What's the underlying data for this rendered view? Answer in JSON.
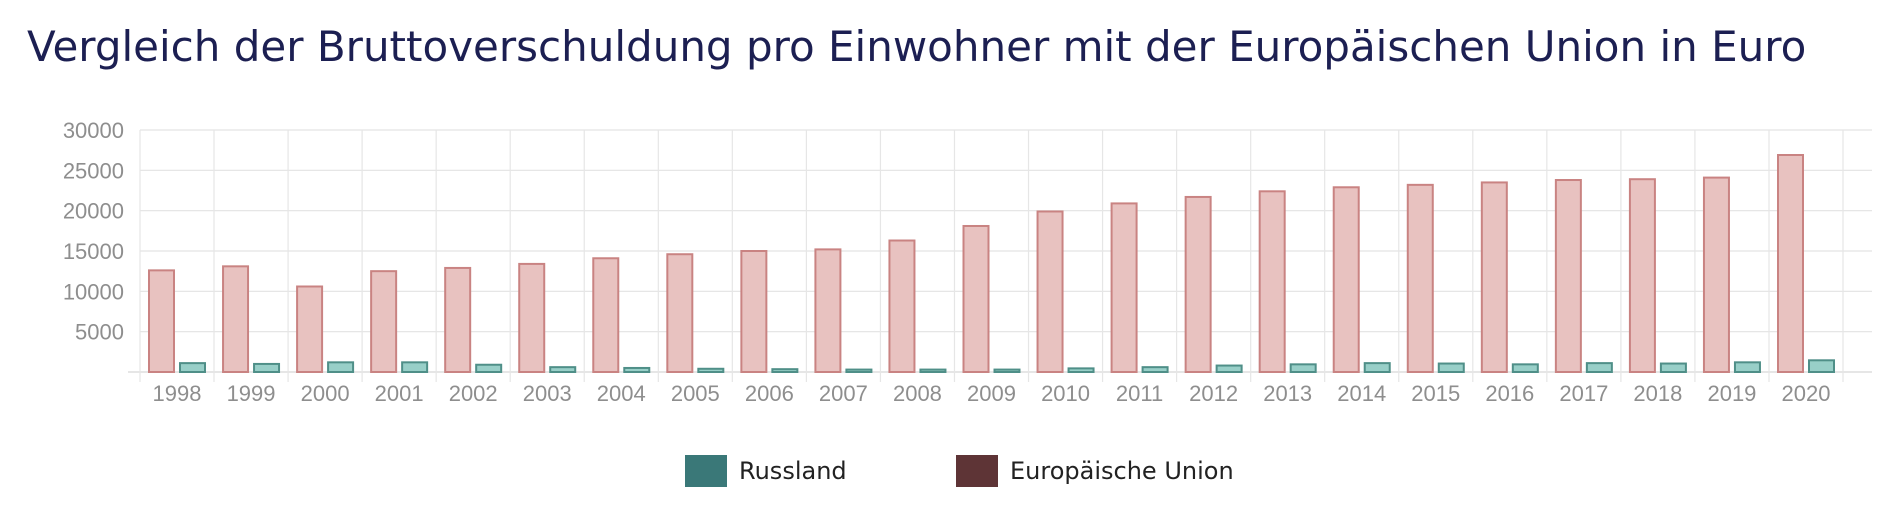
{
  "chart_data": {
    "type": "bar",
    "title": "Vergleich der Bruttoverschuldung pro Einwohner mit der Europäischen Union in Euro",
    "xlabel": "",
    "ylabel": "",
    "ylim": [
      0,
      30000
    ],
    "yticks": [
      5000,
      10000,
      15000,
      20000,
      25000,
      30000
    ],
    "grid": true,
    "legend_position": "bottom-center",
    "categories": [
      "1998",
      "1999",
      "2000",
      "2001",
      "2002",
      "2003",
      "2004",
      "2005",
      "2006",
      "2007",
      "2008",
      "2009",
      "2010",
      "2011",
      "2012",
      "2013",
      "2014",
      "2015",
      "2016",
      "2017",
      "2018",
      "2019",
      "2020"
    ],
    "series": [
      {
        "name": "Europäische Union",
        "color": "#5e3436",
        "fill": "#e8c2c0",
        "stroke": "#c98382",
        "values": [
          12600,
          13100,
          10600,
          12500,
          12900,
          13400,
          14100,
          14600,
          15000,
          15200,
          16300,
          18100,
          19900,
          20900,
          21700,
          22400,
          22900,
          23200,
          23500,
          23800,
          23900,
          24100,
          26900
        ]
      },
      {
        "name": "Russland",
        "color": "#3a7878",
        "fill": "#98cfc8",
        "stroke": "#4f8f88",
        "values": [
          1100,
          1000,
          1200,
          1200,
          900,
          600,
          500,
          400,
          350,
          300,
          300,
          300,
          450,
          600,
          800,
          950,
          1100,
          1050,
          950,
          1100,
          1050,
          1200,
          1450
        ]
      }
    ]
  },
  "legend": [
    {
      "label": "Russland",
      "color": "#3a7878"
    },
    {
      "label": "Europäische Union",
      "color": "#5e3436"
    }
  ]
}
